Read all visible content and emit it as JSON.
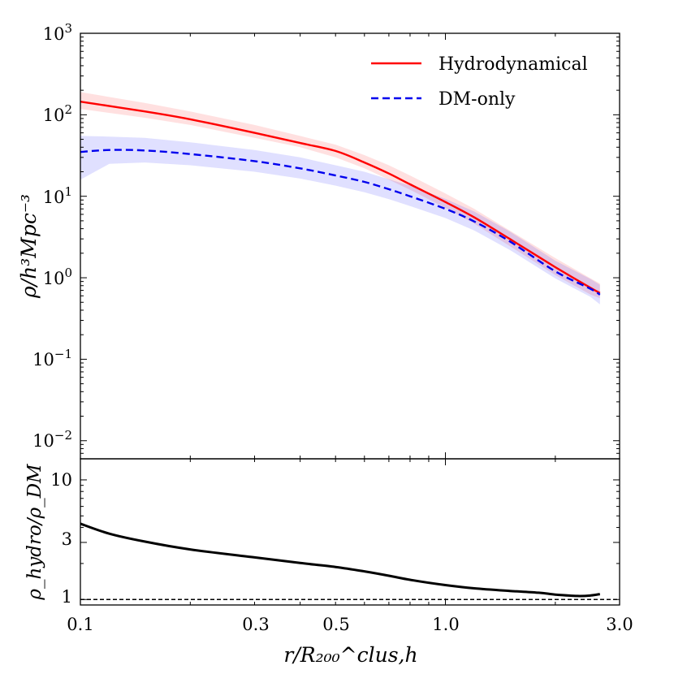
{
  "chart_data": [
    {
      "type": "line",
      "panel": "top",
      "xscale": "log",
      "yscale": "log",
      "xlim": [
        0.1,
        3.0
      ],
      "ylim": [
        0.006,
        1000
      ],
      "ylabel": "ρ/h³Mpc⁻³",
      "yticks": [
        {
          "value": 1000,
          "base": "10",
          "exp": "3"
        },
        {
          "value": 100,
          "base": "10",
          "exp": "2"
        },
        {
          "value": 10,
          "base": "10",
          "exp": "1"
        },
        {
          "value": 1,
          "base": "10",
          "exp": "0"
        },
        {
          "value": 0.1,
          "base": "10",
          "exp": "−1"
        },
        {
          "value": 0.01,
          "base": "10",
          "exp": "−2"
        }
      ],
      "legend": {
        "position": "top-right"
      },
      "series": [
        {
          "name": "Hydrodynamical",
          "color": "#ff0000",
          "dash": "solid",
          "x": [
            0.1,
            0.15,
            0.2,
            0.3,
            0.4,
            0.5,
            0.6,
            0.7,
            0.8,
            1.0,
            1.2,
            1.5,
            2.0,
            2.5,
            2.65
          ],
          "y": [
            145,
            110,
            88,
            60,
            45,
            36,
            26,
            19,
            14,
            8.5,
            5.5,
            3.0,
            1.35,
            0.75,
            0.65
          ],
          "band_lo": [
            118,
            92,
            75,
            52,
            40,
            30,
            22,
            16,
            12,
            7.2,
            4.6,
            2.45,
            1.08,
            0.62,
            0.56
          ],
          "band_hi": [
            190,
            140,
            110,
            75,
            55,
            43,
            32,
            24,
            18,
            10.8,
            7.0,
            3.8,
            1.75,
            0.98,
            0.85
          ]
        },
        {
          "name": "DM-only",
          "color": "#0000ee",
          "dash": "dashed",
          "x": [
            0.1,
            0.12,
            0.15,
            0.2,
            0.3,
            0.4,
            0.5,
            0.6,
            0.7,
            0.8,
            1.0,
            1.2,
            1.5,
            2.0,
            2.5,
            2.65
          ],
          "y": [
            35,
            37,
            36.5,
            33,
            27,
            22,
            18,
            15,
            12.2,
            10,
            7.0,
            4.9,
            2.8,
            1.2,
            0.73,
            0.62
          ],
          "band_lo": [
            16,
            25,
            26,
            24,
            20,
            16.5,
            13.5,
            11.2,
            9.2,
            7.6,
            5.4,
            3.8,
            2.2,
            0.98,
            0.58,
            0.47
          ],
          "band_hi": [
            55,
            54,
            52,
            46,
            37,
            30,
            24,
            20,
            16.2,
            13.5,
            9.3,
            6.5,
            3.7,
            1.62,
            0.96,
            0.82
          ]
        }
      ]
    },
    {
      "type": "line",
      "panel": "bottom",
      "xscale": "log",
      "yscale": "log",
      "xlim": [
        0.1,
        3.0
      ],
      "ylim": [
        0.9,
        15
      ],
      "xlabel": "r/R₂₀₀^clus,h",
      "ylabel": "ρ_hydro/ρ_DM",
      "xticks": [
        0.1,
        0.3,
        0.5,
        1.0,
        3.0
      ],
      "xtick_labels": [
        "0.1",
        "0.3",
        "0.5",
        "1.0",
        "3.0"
      ],
      "yticks": [
        1,
        3,
        10
      ],
      "ytick_labels": [
        "1",
        "3",
        "10"
      ],
      "reference_line": {
        "y": 1,
        "dash": "dashed",
        "color": "#000000"
      },
      "series": [
        {
          "name": "ratio",
          "color": "#000000",
          "x": [
            0.1,
            0.12,
            0.15,
            0.2,
            0.3,
            0.4,
            0.5,
            0.6,
            0.7,
            0.8,
            1.0,
            1.2,
            1.5,
            1.8,
            2.0,
            2.3,
            2.5,
            2.65
          ],
          "y": [
            4.3,
            3.55,
            3.05,
            2.62,
            2.25,
            2.02,
            1.87,
            1.72,
            1.58,
            1.46,
            1.32,
            1.24,
            1.18,
            1.14,
            1.1,
            1.07,
            1.08,
            1.11
          ]
        }
      ]
    }
  ]
}
